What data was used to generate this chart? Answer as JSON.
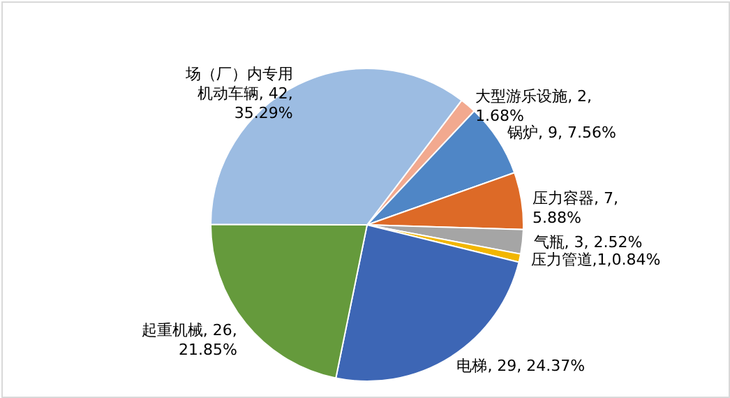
{
  "chart_data": {
    "type": "pie",
    "categories": [
      "大型游乐设施",
      "锅炉",
      "压力容器",
      "气瓶",
      "压力管道",
      "电梯",
      "起重机械",
      "场（厂）内专用机动车辆"
    ],
    "values": [
      2,
      9,
      7,
      3,
      1,
      29,
      26,
      42
    ],
    "colors": [
      "#f2a98f",
      "#4f86c6",
      "#dd6a27",
      "#a5a5a5",
      "#f2b600",
      "#3d66b5",
      "#659a3c",
      "#9cbce2"
    ],
    "value_labels": [
      ", 2,\n1.68%",
      ", 9, 7.56%",
      ", 7,\n5.88%",
      ", 3, 2.52%",
      ",1,0.84%",
      ", 29, 24.37%",
      ", 26,\n21.85%",
      ", 42,\n35.29%"
    ],
    "legend": false
  }
}
